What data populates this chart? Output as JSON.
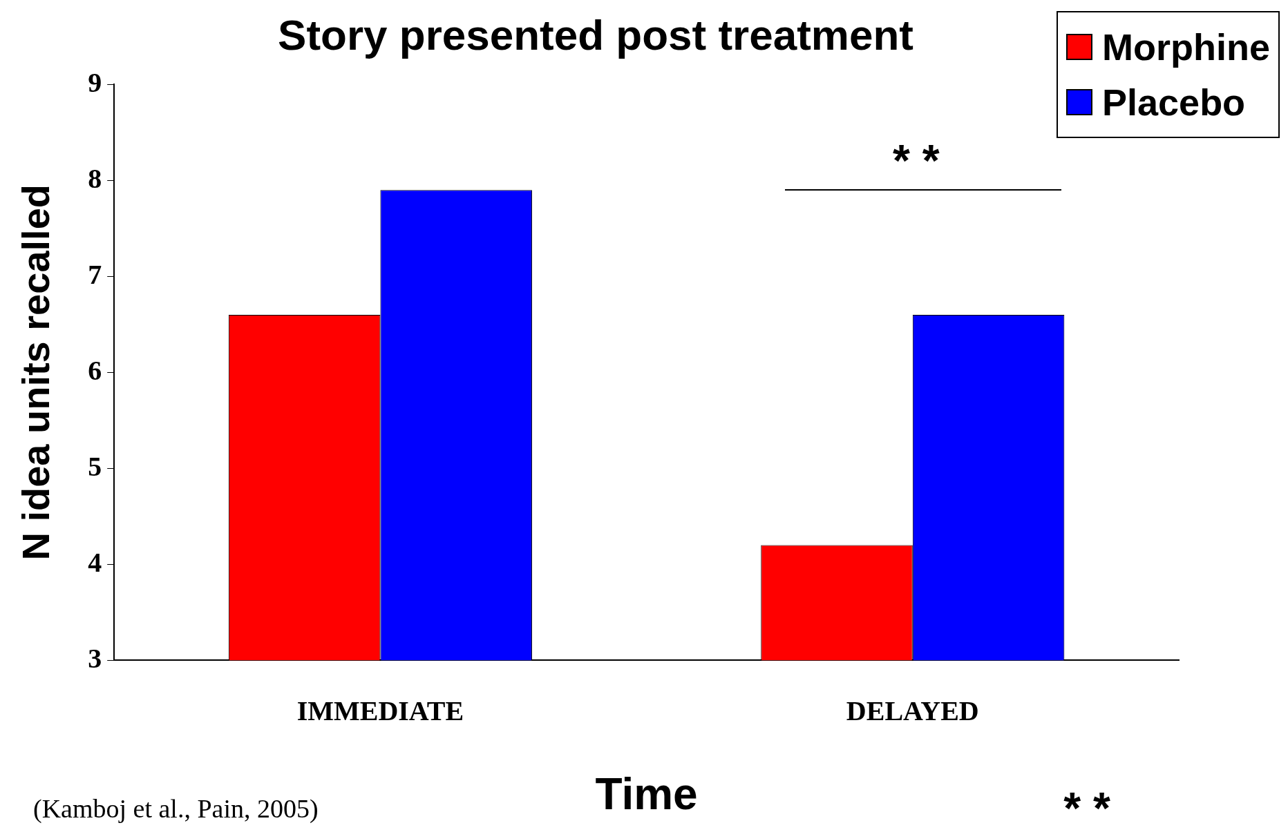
{
  "chart_data": {
    "type": "bar",
    "title": "Story presented post treatment",
    "xlabel": "Time",
    "ylabel": "N idea units recalled",
    "categories": [
      "IMMEDIATE",
      "DELAYED"
    ],
    "series": [
      {
        "name": "Morphine",
        "color": "#ff0000",
        "values": [
          6.6,
          4.2
        ]
      },
      {
        "name": "Placebo",
        "color": "#0000ff",
        "values": [
          7.9,
          6.6
        ]
      }
    ],
    "ylim": [
      3,
      9
    ],
    "yticks": [
      3,
      4,
      5,
      6,
      7,
      8,
      9
    ],
    "grid": false,
    "legend": "top right",
    "annotations": [
      "* *",
      "(Kamboj et al., Pain, 2005)",
      "* *"
    ]
  }
}
